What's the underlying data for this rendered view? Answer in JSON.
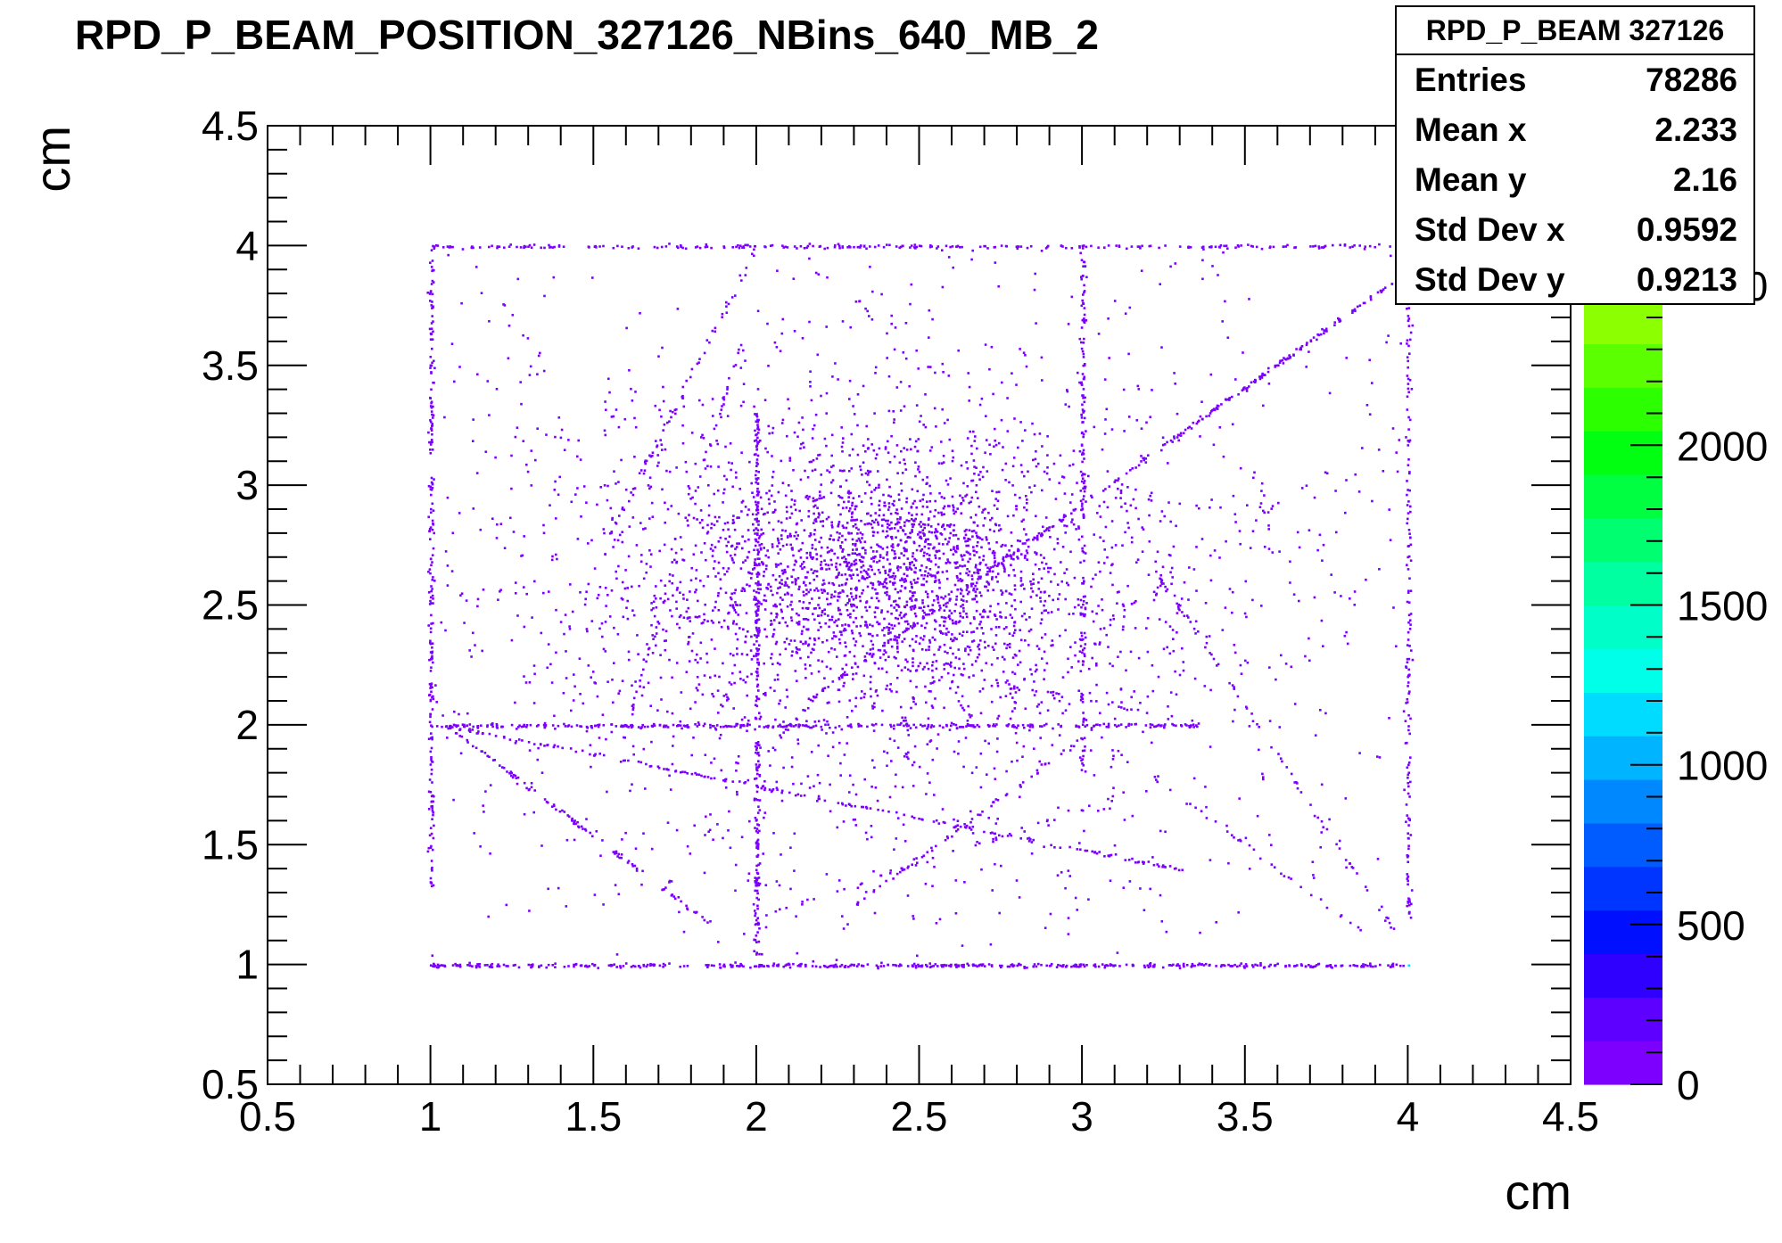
{
  "chart_data": {
    "type": "heatmap",
    "title": "RPD_P_BEAM_POSITION_327126_NBins_640_MB_2",
    "xlabel": "cm",
    "ylabel": "cm",
    "xlim": [
      0.5,
      4.5
    ],
    "ylim": [
      0.5,
      4.5
    ],
    "x_ticks": [
      "0.5",
      "1",
      "1.5",
      "2",
      "2.5",
      "3",
      "3.5",
      "4",
      "4.5"
    ],
    "y_ticks": [
      "0.5",
      "1",
      "1.5",
      "2",
      "2.5",
      "3",
      "3.5",
      "4",
      "4.5"
    ],
    "z_range": [
      0,
      3000
    ],
    "z_ticks": [
      "0",
      "500",
      "1000",
      "1500",
      "2000",
      "2500"
    ],
    "palette": [
      "#7d00ff",
      "#5e00ff",
      "#3000ff",
      "#0010ff",
      "#0034ff",
      "#005cff",
      "#0088ff",
      "#00b4ff",
      "#00dcff",
      "#00ffe8",
      "#00ffc8",
      "#00ffa0",
      "#00ff70",
      "#00ff40",
      "#00ff10",
      "#2cff00",
      "#5cff00",
      "#8cff00",
      "#bcff00",
      "#e8ff00",
      "#ffe600",
      "#ffa000"
    ],
    "grid": false,
    "legend": "top-right",
    "stats": {
      "title": "RPD_P_BEAM 327126",
      "rows": [
        {
          "label": "Entries",
          "value": "78286"
        },
        {
          "label": "Mean x",
          "value": "2.233"
        },
        {
          "label": "Mean y",
          "value": "2.16"
        },
        {
          "label": "Std Dev x",
          "value": "0.9592"
        },
        {
          "label": "Std Dev y",
          "value": "0.9213"
        }
      ]
    },
    "segments": [
      {
        "x1": 1.0,
        "y1": 2.0,
        "x2": 3.35,
        "y2": 2.0,
        "density": 140
      },
      {
        "x1": 1.0,
        "y1": 1.0,
        "x2": 4.0,
        "y2": 1.0,
        "density": 160
      },
      {
        "x1": 1.0,
        "y1": 4.0,
        "x2": 4.0,
        "y2": 4.0,
        "density": 90
      },
      {
        "x1": 1.0,
        "y1": 1.3,
        "x2": 1.0,
        "y2": 4.0,
        "density": 80
      },
      {
        "x1": 2.0,
        "y1": 1.05,
        "x2": 2.0,
        "y2": 3.35,
        "density": 110
      },
      {
        "x1": 3.0,
        "y1": 1.8,
        "x2": 3.0,
        "y2": 4.0,
        "density": 70
      },
      {
        "x1": 4.0,
        "y1": 1.2,
        "x2": 4.0,
        "y2": 3.9,
        "density": 60
      },
      {
        "x1": 1.05,
        "y1": 2.0,
        "x2": 1.85,
        "y2": 1.18,
        "density": 90
      },
      {
        "x1": 1.05,
        "y1": 2.0,
        "x2": 3.3,
        "y2": 1.4,
        "density": 80
      },
      {
        "x1": 1.6,
        "y1": 2.5,
        "x2": 3.4,
        "y2": 2.0,
        "density": 30
      },
      {
        "x1": 1.55,
        "y1": 2.8,
        "x2": 2.0,
        "y2": 4.0,
        "density": 45
      },
      {
        "x1": 1.6,
        "y1": 2.0,
        "x2": 1.95,
        "y2": 3.6,
        "density": 35
      },
      {
        "x1": 1.7,
        "y1": 1.3,
        "x2": 2.1,
        "y2": 2.0,
        "density": 25
      },
      {
        "x1": 2.3,
        "y1": 1.25,
        "x2": 3.0,
        "y2": 1.95,
        "density": 60
      },
      {
        "x1": 2.0,
        "y1": 1.2,
        "x2": 3.1,
        "y2": 1.7,
        "density": 30
      },
      {
        "x1": 2.15,
        "y1": 2.1,
        "x2": 3.95,
        "y2": 3.85,
        "density": 110
      },
      {
        "x1": 2.5,
        "y1": 1.9,
        "x2": 3.9,
        "y2": 3.2,
        "density": 20
      },
      {
        "x1": 3.2,
        "y1": 2.7,
        "x2": 3.95,
        "y2": 1.15,
        "density": 40
      },
      {
        "x1": 3.2,
        "y1": 1.8,
        "x2": 3.85,
        "y2": 1.15,
        "density": 35
      },
      {
        "x1": 1.2,
        "y1": 3.8,
        "x2": 1.35,
        "y2": 3.5,
        "density": 15
      },
      {
        "x1": 2.3,
        "y1": 3.8,
        "x2": 2.5,
        "y2": 3.45,
        "density": 15
      },
      {
        "x1": 2.4,
        "y1": 1.95,
        "x2": 2.75,
        "y2": 2.5,
        "density": 25
      }
    ],
    "clusters": [
      {
        "cx": 2.4,
        "cy": 2.65,
        "sx": 0.28,
        "sy": 0.22,
        "n": 1300
      },
      {
        "cx": 2.3,
        "cy": 2.6,
        "sx": 0.55,
        "sy": 0.5,
        "n": 1600
      },
      {
        "cx": 2.5,
        "cy": 2.4,
        "sx": 0.85,
        "sy": 0.85,
        "n": 1100
      }
    ]
  }
}
